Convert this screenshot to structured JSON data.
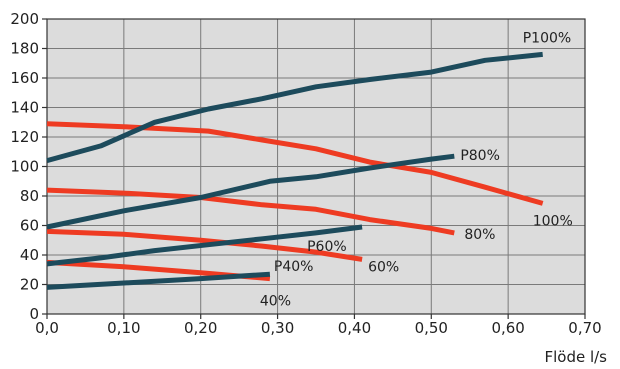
{
  "chart_data": {
    "type": "line",
    "title": "",
    "xlabel": "Flöde l/s",
    "ylabel": "",
    "xlim": [
      0,
      0.7
    ],
    "ylim": [
      0,
      200
    ],
    "x_ticks": [
      "0,0",
      "0,10",
      "0,20",
      "0,30",
      "0,40",
      "0,50",
      "0,60",
      "0,70"
    ],
    "y_ticks": [
      "0",
      "20",
      "40",
      "60",
      "80",
      "100",
      "120",
      "140",
      "160",
      "180",
      "200"
    ],
    "grid": true,
    "legend": "none",
    "colors": {
      "pressure": "#ee3b22",
      "power": "#1d4b5c",
      "plot_bg": "#dcdcdc",
      "grid": "#7a7a7a"
    },
    "series": [
      {
        "name": "P100%",
        "kind": "power",
        "x": [
          0,
          0.07,
          0.14,
          0.21,
          0.28,
          0.35,
          0.42,
          0.5,
          0.57,
          0.645
        ],
        "y": [
          104,
          114,
          130,
          139,
          146,
          154,
          159,
          164,
          172,
          176
        ]
      },
      {
        "name": "P80%",
        "kind": "power",
        "x": [
          0,
          0.1,
          0.2,
          0.29,
          0.35,
          0.42,
          0.5,
          0.53
        ],
        "y": [
          59,
          70,
          79,
          90,
          93,
          99,
          105,
          107
        ]
      },
      {
        "name": "P60%",
        "kind": "power",
        "x": [
          0,
          0.07,
          0.14,
          0.21,
          0.28,
          0.35,
          0.41
        ],
        "y": [
          34,
          38,
          43,
          47,
          51,
          55,
          59
        ]
      },
      {
        "name": "P40%",
        "kind": "power",
        "x": [
          0,
          0.1,
          0.2,
          0.29
        ],
        "y": [
          18,
          21,
          24,
          27
        ]
      },
      {
        "name": "100%",
        "kind": "pressure",
        "x": [
          0,
          0.1,
          0.21,
          0.28,
          0.35,
          0.42,
          0.5,
          0.57,
          0.645
        ],
        "y": [
          129,
          127,
          124,
          118,
          112,
          103,
          96,
          86,
          75
        ]
      },
      {
        "name": "80%",
        "kind": "pressure",
        "x": [
          0,
          0.1,
          0.2,
          0.28,
          0.35,
          0.42,
          0.5,
          0.53
        ],
        "y": [
          84,
          82,
          79,
          74,
          71,
          64,
          58,
          55
        ]
      },
      {
        "name": "60%",
        "kind": "pressure",
        "x": [
          0,
          0.1,
          0.2,
          0.28,
          0.35,
          0.41
        ],
        "y": [
          56,
          54,
          50,
          46,
          42,
          37
        ]
      },
      {
        "name": "40%",
        "kind": "pressure",
        "x": [
          0,
          0.1,
          0.2,
          0.29
        ],
        "y": [
          35,
          32,
          28,
          24
        ]
      }
    ]
  }
}
